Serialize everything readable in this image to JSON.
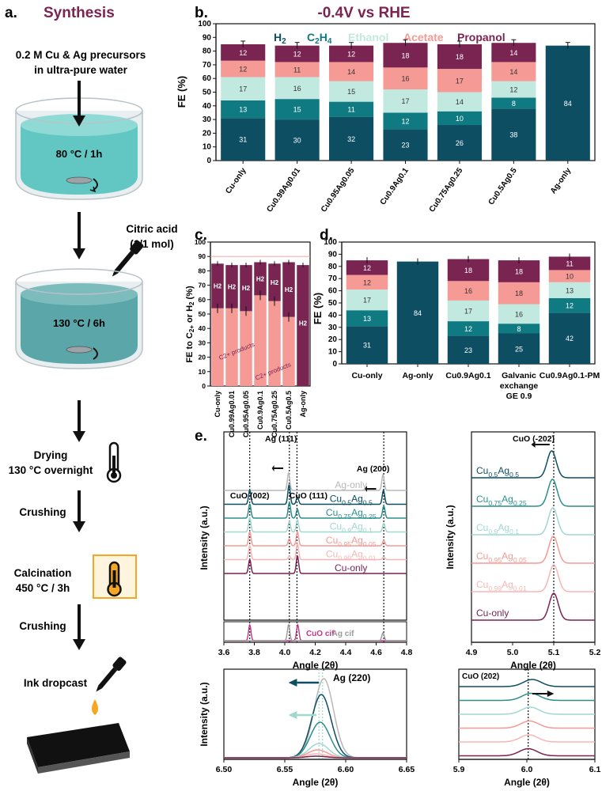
{
  "colors": {
    "h2": "#0d4e63",
    "c2h4": "#0f7a82",
    "ethanol": "#c2e9df",
    "acetate": "#f59a95",
    "propanol": "#7a2452",
    "ag_text": "#999999",
    "cuo_cif": "#c0378a",
    "synthesis_title": "#7a2452",
    "water": "#62c7c2",
    "thermo_box": "#f5a623",
    "drop": "#f5a623"
  },
  "panel_a": {
    "letter": "a.",
    "title": "Synthesis",
    "steps": {
      "precursors_l1": "0.2 M Cu & Ag precursors",
      "precursors_l2": "in ultra-pure water",
      "heat1": "80 °C / 1h",
      "citric_l1": "Citric acid",
      "citric_l2": "(1/1 mol)",
      "heat2": "130 °C / 6h",
      "drying_l1": "Drying",
      "drying_l2": "130 °C overnight",
      "crushing1": "Crushing",
      "calcination_l1": "Calcination",
      "calcination_l2": "450 °C / 3h",
      "crushing2": "Crushing",
      "ink": "Ink dropcast"
    }
  },
  "chart_data": [
    {
      "id": "b",
      "type": "bar",
      "stacked": true,
      "letter": "b.",
      "title": "-0.4V vs RHE",
      "ylabel": "FE (%)",
      "ylim": [
        0,
        100
      ],
      "yticks": [
        0,
        10,
        20,
        30,
        40,
        50,
        60,
        70,
        80,
        90,
        100
      ],
      "legend": [
        "H2",
        "C2H4",
        "Ethanol",
        "Acetate",
        "Propanol"
      ],
      "categories": [
        "Cu-only",
        "Cu0.99Ag0.01",
        "Cu0.95Ag0.05",
        "Cu0.9Ag0.1",
        "Cu0.75Ag0.25",
        "Cu0.5Ag0.5",
        "Ag-only"
      ],
      "series": [
        {
          "name": "H2",
          "values": [
            31,
            30,
            32,
            23,
            26,
            38,
            84
          ]
        },
        {
          "name": "C2H4",
          "values": [
            13,
            15,
            11,
            12,
            10,
            8,
            0
          ]
        },
        {
          "name": "Ethanol",
          "values": [
            17,
            16,
            15,
            17,
            14,
            12,
            0
          ]
        },
        {
          "name": "Acetate",
          "values": [
            12,
            11,
            14,
            16,
            17,
            14,
            0
          ]
        },
        {
          "name": "Propanol",
          "values": [
            12,
            12,
            12,
            18,
            18,
            14,
            0
          ]
        }
      ],
      "bar_labels": [
        [
          "31",
          "13",
          "17",
          "12",
          "12"
        ],
        [
          "30",
          "15",
          "16",
          "11",
          "12"
        ],
        [
          "32",
          "11",
          "15",
          "14",
          "12"
        ],
        [
          "23",
          "12",
          "17",
          "16",
          "18"
        ],
        [
          "26",
          "10",
          "14",
          "17",
          "18"
        ],
        [
          "38",
          "8",
          "12",
          "14",
          "14"
        ],
        [
          "84",
          "",
          "",
          "",
          ""
        ]
      ]
    },
    {
      "id": "c",
      "type": "bar",
      "stacked": true,
      "letter": "c.",
      "ylabel": "FE to C2+ or H2 (%)",
      "ylim": [
        0,
        100
      ],
      "yticks": [
        0,
        10,
        20,
        30,
        40,
        50,
        60,
        70,
        80,
        90,
        100
      ],
      "categories": [
        "Cu-only",
        "Cu0.99Ag0.01",
        "Cu0.95Ag0.05",
        "Cu0.9Ag0.1",
        "Cu0.75Ag0.25",
        "Cu0.5Ag0.5",
        "Ag-only"
      ],
      "series": [
        {
          "name": "C2+ products",
          "values": [
            54,
            54,
            52,
            63,
            59,
            48,
            0
          ]
        },
        {
          "name": "H2",
          "values": [
            31,
            30,
            32,
            23,
            26,
            38,
            84
          ]
        }
      ],
      "labels": {
        "h2": "H2",
        "c2": "C2+ products"
      }
    },
    {
      "id": "d",
      "type": "bar",
      "stacked": true,
      "letter": "d.",
      "ylabel": "FE (%)",
      "ylim": [
        0,
        100
      ],
      "yticks": [
        0,
        10,
        20,
        30,
        40,
        50,
        60,
        70,
        80,
        90,
        100
      ],
      "categories": [
        "Cu-only",
        "Ag-only",
        "Cu0.9Ag0.1",
        "Galvanic exchange GE 0.9",
        "Cu0.9Ag0.1-PM"
      ],
      "category_lines": [
        [
          "Cu-only"
        ],
        [
          "Ag-only"
        ],
        [
          "Cu0.9Ag0.1"
        ],
        [
          "Galvanic",
          "exchange",
          "GE 0.9"
        ],
        [
          "Cu0.9Ag0.1-PM"
        ]
      ],
      "series": [
        {
          "name": "H2",
          "values": [
            31,
            84,
            23,
            25,
            42
          ]
        },
        {
          "name": "C2H4",
          "values": [
            13,
            0,
            12,
            8,
            12
          ]
        },
        {
          "name": "Ethanol",
          "values": [
            17,
            0,
            17,
            16,
            13
          ]
        },
        {
          "name": "Acetate",
          "values": [
            12,
            0,
            16,
            18,
            10
          ]
        },
        {
          "name": "Propanol",
          "values": [
            12,
            0,
            18,
            18,
            11
          ]
        }
      ],
      "bar_labels": [
        [
          "31",
          "13",
          "17",
          "12",
          "12"
        ],
        [
          "84",
          "",
          "",
          "",
          ""
        ],
        [
          "23",
          "12",
          "17",
          "16",
          "18"
        ],
        [
          "25",
          "8",
          "16",
          "18",
          "18"
        ],
        [
          "42",
          "12",
          "13",
          "10",
          "11"
        ]
      ]
    },
    {
      "id": "e1",
      "type": "line",
      "letter": "e.",
      "xlabel": "Angle (2θ)",
      "ylabel": "Intensity (a.u.)",
      "xlim": [
        3.6,
        4.8
      ],
      "xticks": [
        "3.6",
        "3.8",
        "4.0",
        "4.2",
        "4.4",
        "4.6",
        "4.8"
      ],
      "annotations": [
        "Ag (111)",
        "Ag (200)",
        "CuO (002)",
        "CuO (111)"
      ],
      "ref_lines": [
        3.77,
        4.03,
        4.08,
        4.65
      ],
      "series": [
        {
          "name": "Ag-only",
          "label": "Ag-only",
          "color": "#b8b8b8",
          "peaks": [
            [
              4.025,
              1.0
            ],
            [
              4.645,
              0.9
            ]
          ]
        },
        {
          "name": "Cu0.5Ag0.5",
          "label": "Cu0.5Ag0.5",
          "color": "#0d4e63",
          "peaks": [
            [
              3.77,
              0.8
            ],
            [
              4.028,
              1.1
            ],
            [
              4.083,
              0.4
            ],
            [
              4.648,
              0.8
            ]
          ]
        },
        {
          "name": "Cu0.75Ag0.25",
          "label": "Cu0.75Ag0.25",
          "color": "#2b8f8c",
          "peaks": [
            [
              3.77,
              0.8
            ],
            [
              4.03,
              0.9
            ],
            [
              4.083,
              0.5
            ],
            [
              4.65,
              0.7
            ]
          ]
        },
        {
          "name": "Cu0.9Ag0.1",
          "label": "Cu0.9Ag0.1",
          "color": "#9fd8cf",
          "peaks": [
            [
              3.77,
              0.8
            ],
            [
              4.03,
              0.6
            ],
            [
              4.083,
              0.7
            ],
            [
              4.65,
              0.5
            ]
          ]
        },
        {
          "name": "Cu0.95Ag0.05",
          "label": "Cu0.95Ag0.05",
          "color": "#f59a95",
          "peaks": [
            [
              3.77,
              0.8
            ],
            [
              4.03,
              0.4
            ],
            [
              4.083,
              0.8
            ],
            [
              4.65,
              0.3
            ]
          ]
        },
        {
          "name": "Cu0.99Ag0.01",
          "label": "Cu0.99Ag0.01",
          "color": "#f7b6b6",
          "peaks": [
            [
              3.77,
              0.8
            ],
            [
              4.03,
              0.2
            ],
            [
              4.083,
              0.9
            ],
            [
              4.65,
              0.15
            ]
          ]
        },
        {
          "name": "Cu-only",
          "label": "Cu-only",
          "color": "#7a2452",
          "peaks": [
            [
              3.77,
              0.8
            ],
            [
              4.083,
              1.0
            ]
          ]
        }
      ],
      "ref_labels": {
        "cuo": "CuO cif",
        "ag": "Ag cif"
      },
      "ref_peaks": {
        "cuo": [
          [
            3.77,
            1.0
          ],
          [
            4.085,
            1.0
          ]
        ],
        "ag": [
          [
            4.025,
            1.0
          ],
          [
            4.645,
            0.5
          ]
        ]
      }
    },
    {
      "id": "e2",
      "type": "line",
      "xlabel": "Angle (2θ)",
      "ylabel": "Intensity (a.u.)",
      "xlim": [
        4.9,
        5.2
      ],
      "xticks": [
        "4.9",
        "5.0",
        "5.1",
        "5.2"
      ],
      "annotation": "CuO (-202)",
      "ref_line": 5.1,
      "series": [
        {
          "name": "Cu0.5Ag0.5",
          "label": "Cu0.5Ag0.5",
          "color": "#0d4e63",
          "peak": 5.095
        },
        {
          "name": "Cu0.75Ag0.25",
          "label": "Cu0.75Ag0.25",
          "color": "#2b8f8c",
          "peak": 5.097
        },
        {
          "name": "Cu0.9Ag0.1",
          "label": "Cu0.9Ag0.1",
          "color": "#9fd8cf",
          "peak": 5.098
        },
        {
          "name": "Cu0.95Ag0.05",
          "label": "Cu0.95Ag0.05",
          "color": "#f59a95",
          "peak": 5.099
        },
        {
          "name": "Cu0.99Ag0.01",
          "label": "Cu0.99Ag0.01",
          "color": "#f7b6b6",
          "peak": 5.1
        },
        {
          "name": "Cu-only",
          "label": "Cu-only",
          "color": "#7a2452",
          "peak": 5.1
        }
      ]
    },
    {
      "id": "e3",
      "type": "line",
      "xlabel": "Angle (2θ)",
      "ylabel": "Intensity (a.u.)",
      "xlim": [
        6.5,
        6.65
      ],
      "xticks": [
        "6.50",
        "6.55",
        "6.60",
        "6.65"
      ],
      "annotation": "Ag (220)",
      "ref_lines": [
        6.578,
        6.581
      ],
      "series": [
        {
          "name": "Ag-only",
          "color": "#b8b8b8",
          "peak": 6.582,
          "height": 1.0
        },
        {
          "name": "Cu0.5Ag0.5",
          "color": "#0d4e63",
          "peak": 6.58,
          "height": 0.8
        },
        {
          "name": "Cu0.75Ag0.25",
          "color": "#2b8f8c",
          "peak": 6.579,
          "height": 0.45
        },
        {
          "name": "Cu0.9Ag0.1",
          "color": "#9fd8cf",
          "peak": 6.578,
          "height": 0.18
        },
        {
          "name": "Cu0.95Ag0.05",
          "color": "#f59a95",
          "peak": 6.577,
          "height": 0.1
        },
        {
          "name": "Cu0.99Ag0.01",
          "color": "#f7b6b6",
          "peak": 6.576,
          "height": 0.05
        },
        {
          "name": "Cu-only",
          "color": "#7a2452",
          "peak": 6.576,
          "height": 0.02
        }
      ]
    },
    {
      "id": "e4",
      "type": "line",
      "xlabel": "Angle (2θ)",
      "ylabel": "",
      "xlim": [
        5.9,
        6.1
      ],
      "xticks": [
        "5.9",
        "6.0",
        "6.1"
      ],
      "annotation": "CuO (202)",
      "ref_line": 6.002,
      "series": [
        {
          "name": "Cu0.5Ag0.5",
          "color": "#0d4e63",
          "peak": 6.008
        },
        {
          "name": "Cu0.75Ag0.25",
          "color": "#2b8f8c",
          "peak": 6.006
        },
        {
          "name": "Cu0.9Ag0.1",
          "color": "#9fd8cf",
          "peak": 6.005
        },
        {
          "name": "Cu0.95Ag0.05",
          "color": "#f59a95",
          "peak": 6.004
        },
        {
          "name": "Cu0.99Ag0.01",
          "color": "#f7b6b6",
          "peak": 6.003
        },
        {
          "name": "Cu-only",
          "color": "#7a2452",
          "peak": 6.002
        }
      ]
    }
  ]
}
